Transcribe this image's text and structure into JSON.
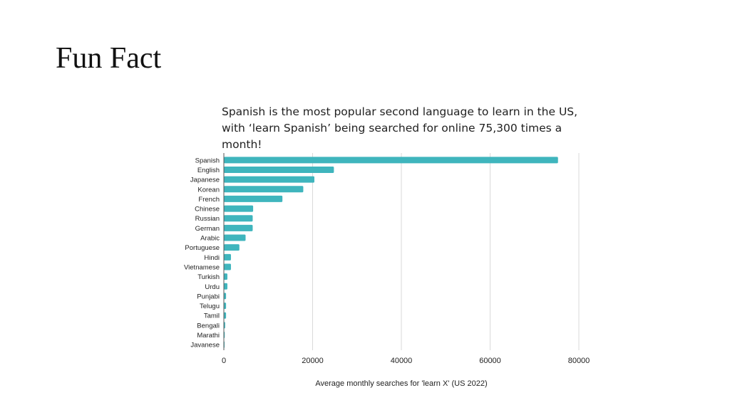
{
  "slide": {
    "title": "Fun Fact",
    "caption": "Spanish is the most popular second language to learn in the US, with ‘learn Spanish’ being searched for online 75,300 times a month!"
  },
  "chart_data": {
    "type": "bar",
    "orientation": "horizontal",
    "categories": [
      "Spanish",
      "English",
      "Japanese",
      "Korean",
      "French",
      "Chinese",
      "Russian",
      "German",
      "Arabic",
      "Portuguese",
      "Hindi",
      "Vietnamese",
      "Turkish",
      "Urdu",
      "Punjabi",
      "Telugu",
      "Tamil",
      "Bengali",
      "Marathi",
      "Javanese"
    ],
    "values": [
      75300,
      24800,
      20400,
      17900,
      13200,
      6600,
      6500,
      6500,
      4900,
      3500,
      1600,
      1600,
      800,
      800,
      500,
      500,
      500,
      300,
      200,
      100
    ],
    "xlabel": "Average monthly searches for 'learn X' (US 2022)",
    "ylabel": "",
    "xlim": [
      0,
      80000
    ],
    "xticks": [
      0,
      20000,
      40000,
      60000,
      80000
    ],
    "grid": true,
    "color": "#3fb5bd"
  }
}
